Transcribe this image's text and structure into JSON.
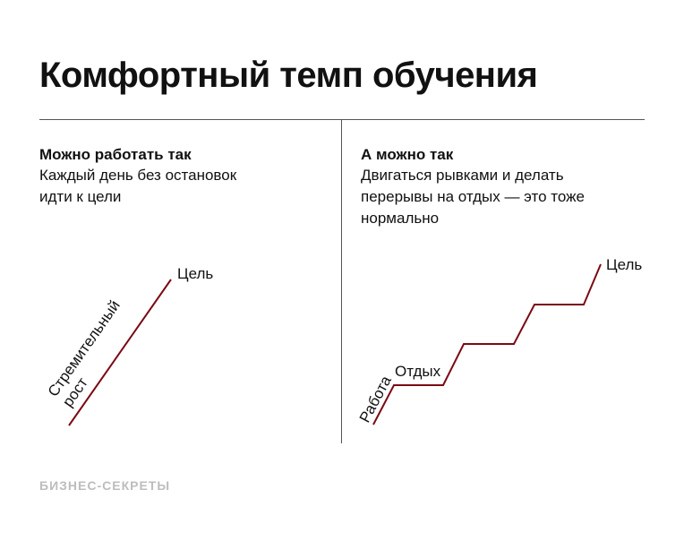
{
  "title": "Комфортный темп обучения",
  "left": {
    "heading": "Можно работать так",
    "text_lines": [
      "Каждый день без остановок",
      "идти к цели"
    ],
    "label_goal": "Цель",
    "label_rise_line1": "Стремительный",
    "label_rise_line2": "рост"
  },
  "right": {
    "heading": "А можно так",
    "text_lines": [
      "Двигаться рывками и делать",
      "перерывы на отдых — это тоже",
      "нормально"
    ],
    "label_goal": "Цель",
    "label_work": "Работа",
    "label_rest": "Отдых"
  },
  "brand": "БИЗНЕС-СЕКРЕТЫ",
  "colors": {
    "line": "#7a0a14",
    "rule": "#555555",
    "text": "#111111",
    "brand": "#bdbdbd"
  }
}
